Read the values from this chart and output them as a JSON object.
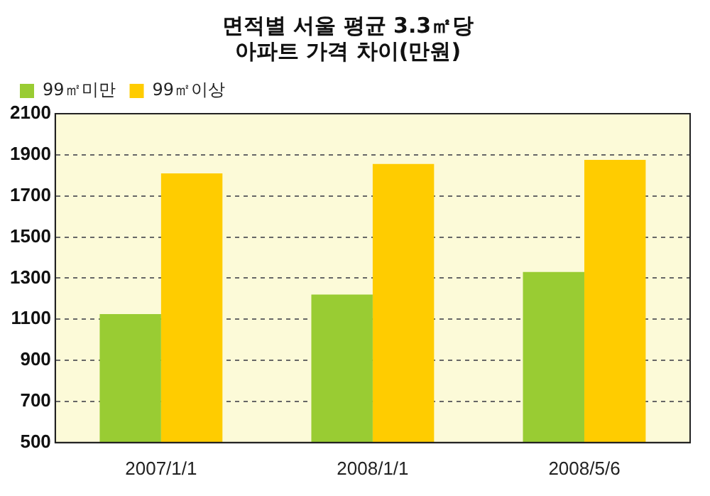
{
  "chart_data": {
    "type": "bar",
    "title": "면적별 서울 평균 3.3㎡당\n아파트 가격 차이(만원)",
    "categories": [
      "2007/1/1",
      "2008/1/1",
      "2008/5/6"
    ],
    "series": [
      {
        "name": "99㎡미만",
        "color": "#99cc33",
        "values": [
          1125,
          1220,
          1330
        ]
      },
      {
        "name": "99㎡이상",
        "color": "#ffcc00",
        "values": [
          1810,
          1855,
          1875
        ]
      }
    ],
    "ylim": [
      500,
      2100
    ],
    "yticks": [
      500,
      700,
      900,
      1100,
      1300,
      1500,
      1700,
      1900,
      2100
    ],
    "grid": "y",
    "legend": "top left"
  }
}
